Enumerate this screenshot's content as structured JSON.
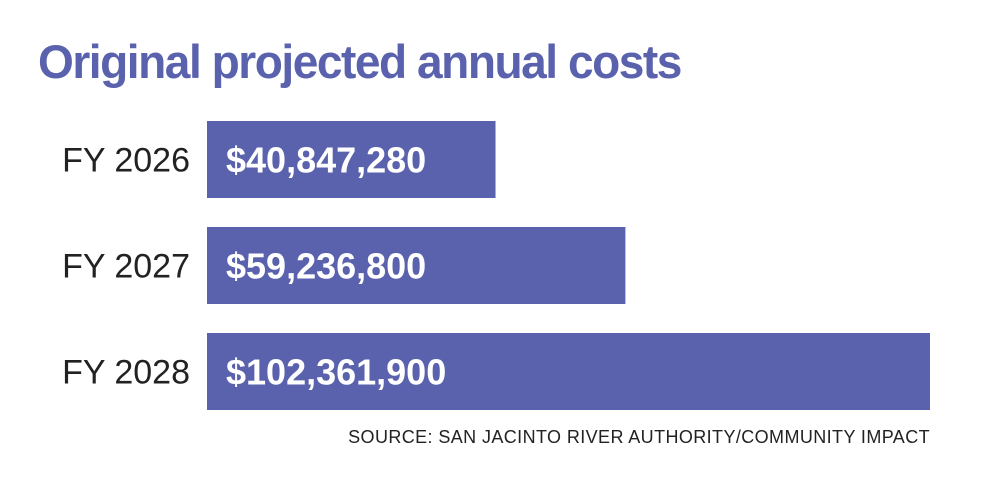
{
  "chart_data": {
    "type": "bar",
    "orientation": "horizontal",
    "title": "Original projected annual costs",
    "categories": [
      "FY 2026",
      "FY 2027",
      "FY 2028"
    ],
    "values": [
      40847280,
      59236800,
      102361900
    ],
    "data_labels": [
      "$40,847,280",
      "$59,236,800",
      "$102,361,900"
    ],
    "xlim": [
      0,
      102361900
    ],
    "grid": false,
    "bar_color": "#5a62ad",
    "title_color": "#5a62ad",
    "source": "SOURCE: SAN JACINTO RIVER AUTHORITY/COMMUNITY IMPACT"
  }
}
